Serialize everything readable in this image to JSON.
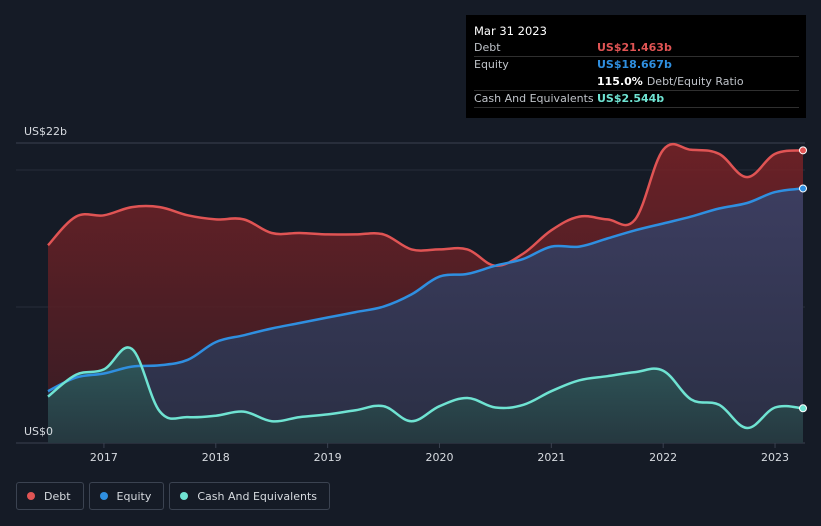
{
  "tooltip": {
    "date": "Mar 31 2023",
    "debt_label": "Debt",
    "debt_value": "US$21.463b",
    "equity_label": "Equity",
    "equity_value": "US$18.667b",
    "ratio_value": "115.0%",
    "ratio_label": "Debt/Equity Ratio",
    "cash_label": "Cash And Equivalents",
    "cash_value": "US$2.544b"
  },
  "legend": {
    "debt": "Debt",
    "equity": "Equity",
    "cash": "Cash And Equivalents"
  },
  "colors": {
    "debt": "#e05454",
    "equity": "#2f8fe0",
    "cash": "#6fe3d2",
    "background": "#151b26"
  },
  "chart_data": {
    "type": "area",
    "title": "",
    "xlabel": "",
    "ylabel": "",
    "y_top_label": "US$22b",
    "y_bottom_label": "US$0",
    "ylim": [
      0,
      22
    ],
    "xlim": [
      2016.5,
      2023.25
    ],
    "x_ticks": [
      "2017",
      "2018",
      "2019",
      "2020",
      "2021",
      "2022",
      "2023"
    ],
    "series": [
      {
        "name": "Debt",
        "key": "debt",
        "points": [
          [
            2016.5,
            14.5
          ],
          [
            2016.75,
            16.6
          ],
          [
            2017.0,
            16.7
          ],
          [
            2017.25,
            17.3
          ],
          [
            2017.5,
            17.3
          ],
          [
            2017.75,
            16.7
          ],
          [
            2018.0,
            16.4
          ],
          [
            2018.25,
            16.4
          ],
          [
            2018.5,
            15.4
          ],
          [
            2018.75,
            15.4
          ],
          [
            2019.0,
            15.3
          ],
          [
            2019.25,
            15.3
          ],
          [
            2019.5,
            15.3
          ],
          [
            2019.75,
            14.2
          ],
          [
            2020.0,
            14.2
          ],
          [
            2020.25,
            14.2
          ],
          [
            2020.5,
            13.0
          ],
          [
            2020.75,
            13.9
          ],
          [
            2021.0,
            15.6
          ],
          [
            2021.25,
            16.6
          ],
          [
            2021.5,
            16.4
          ],
          [
            2021.75,
            16.4
          ],
          [
            2022.0,
            21.5
          ],
          [
            2022.25,
            21.5
          ],
          [
            2022.5,
            21.2
          ],
          [
            2022.75,
            19.5
          ],
          [
            2023.0,
            21.2
          ],
          [
            2023.25,
            21.463
          ]
        ]
      },
      {
        "name": "Equity",
        "key": "equity",
        "points": [
          [
            2016.5,
            3.8
          ],
          [
            2016.75,
            4.8
          ],
          [
            2017.0,
            5.1
          ],
          [
            2017.25,
            5.6
          ],
          [
            2017.5,
            5.7
          ],
          [
            2017.75,
            6.1
          ],
          [
            2018.0,
            7.4
          ],
          [
            2018.25,
            7.9
          ],
          [
            2018.5,
            8.4
          ],
          [
            2018.75,
            8.8
          ],
          [
            2019.0,
            9.2
          ],
          [
            2019.25,
            9.6
          ],
          [
            2019.5,
            10.0
          ],
          [
            2019.75,
            10.9
          ],
          [
            2020.0,
            12.2
          ],
          [
            2020.25,
            12.4
          ],
          [
            2020.5,
            13.0
          ],
          [
            2020.75,
            13.5
          ],
          [
            2021.0,
            14.4
          ],
          [
            2021.25,
            14.4
          ],
          [
            2021.5,
            15.0
          ],
          [
            2021.75,
            15.6
          ],
          [
            2022.0,
            16.1
          ],
          [
            2022.25,
            16.6
          ],
          [
            2022.5,
            17.2
          ],
          [
            2022.75,
            17.6
          ],
          [
            2023.0,
            18.4
          ],
          [
            2023.25,
            18.667
          ]
        ]
      },
      {
        "name": "Cash And Equivalents",
        "key": "cash",
        "points": [
          [
            2016.5,
            3.4
          ],
          [
            2016.75,
            5.0
          ],
          [
            2017.0,
            5.4
          ],
          [
            2017.25,
            6.9
          ],
          [
            2017.5,
            2.3
          ],
          [
            2017.75,
            1.9
          ],
          [
            2018.0,
            2.0
          ],
          [
            2018.25,
            2.3
          ],
          [
            2018.5,
            1.6
          ],
          [
            2018.75,
            1.9
          ],
          [
            2019.0,
            2.1
          ],
          [
            2019.25,
            2.4
          ],
          [
            2019.5,
            2.7
          ],
          [
            2019.75,
            1.6
          ],
          [
            2020.0,
            2.7
          ],
          [
            2020.25,
            3.3
          ],
          [
            2020.5,
            2.6
          ],
          [
            2020.75,
            2.8
          ],
          [
            2021.0,
            3.8
          ],
          [
            2021.25,
            4.6
          ],
          [
            2021.5,
            4.9
          ],
          [
            2021.75,
            5.2
          ],
          [
            2022.0,
            5.3
          ],
          [
            2022.25,
            3.2
          ],
          [
            2022.5,
            2.8
          ],
          [
            2022.75,
            1.1
          ],
          [
            2023.0,
            2.6
          ],
          [
            2023.25,
            2.544
          ]
        ]
      }
    ]
  }
}
